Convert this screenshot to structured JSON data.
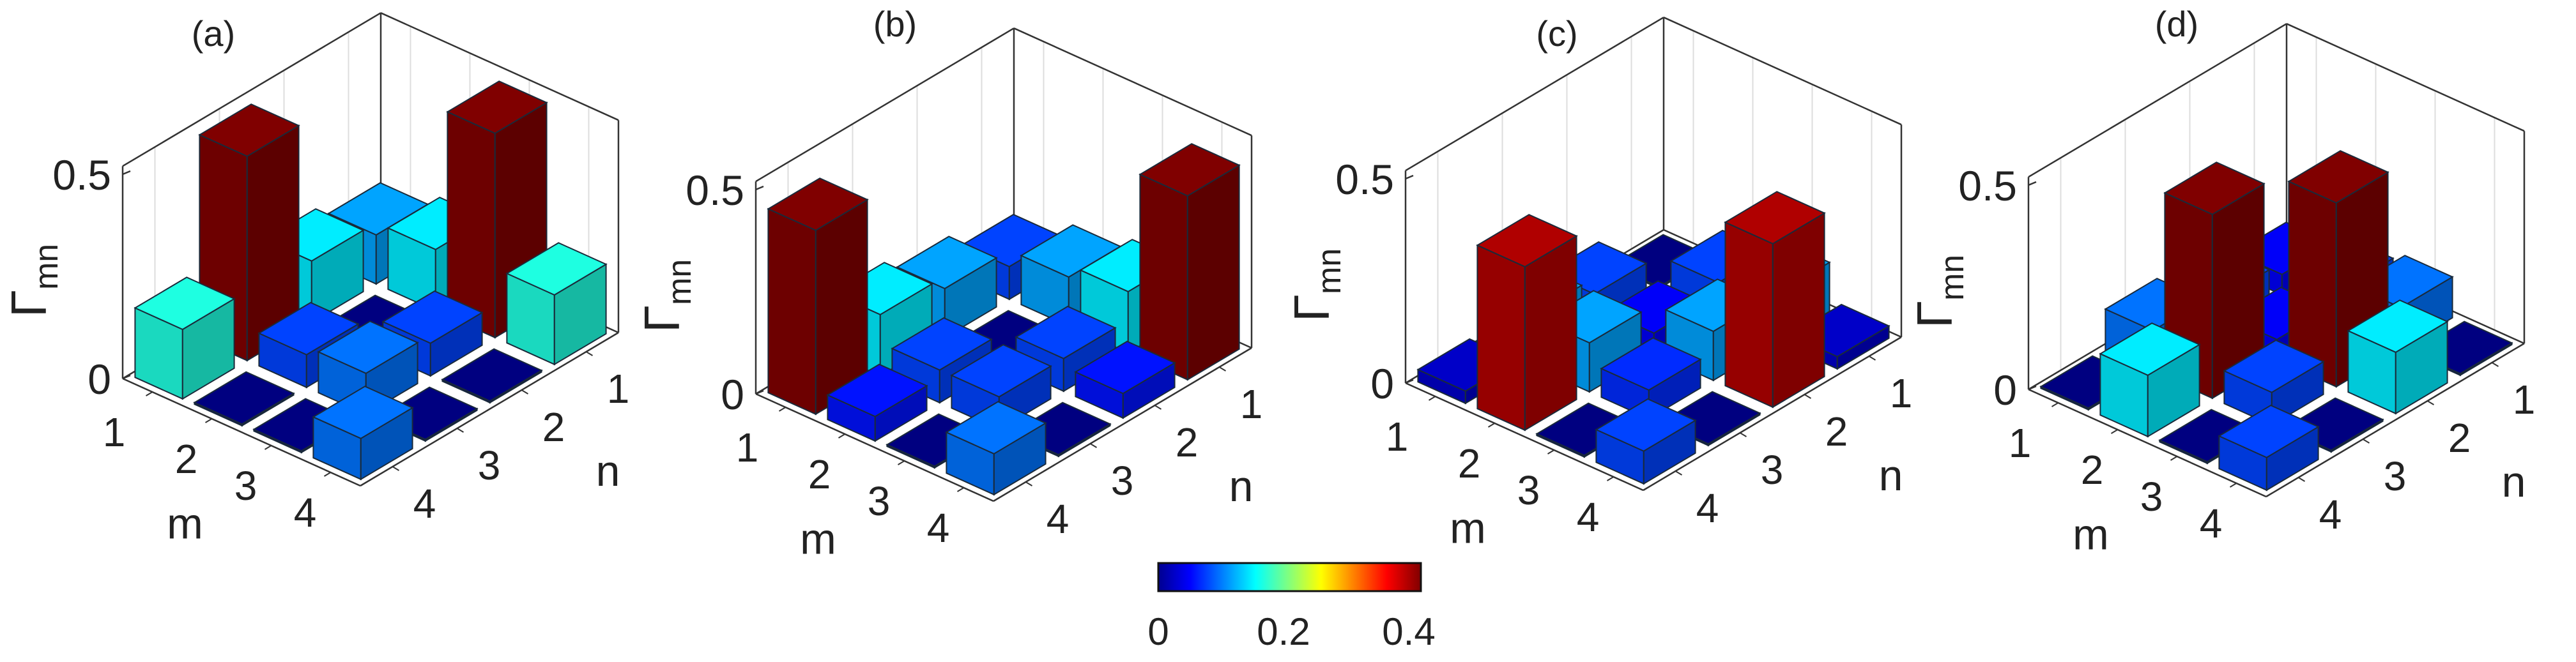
{
  "chart_data": [
    {
      "type": "bar3d",
      "panel_label": "(a)",
      "xlabel": "m",
      "ylabel": "n",
      "zlabel": "Γ",
      "zlabel_sub": "mn",
      "m_ticks": [
        "1",
        "2",
        "3",
        "4"
      ],
      "n_ticks": [
        "1",
        "2",
        "3",
        "4"
      ],
      "z_ticks": [
        "0",
        "0.5"
      ],
      "zlim": [
        0,
        0.52
      ],
      "values": [
        [
          0.12,
          0.15,
          0.5,
          0.17
        ],
        [
          0.15,
          0.0,
          0.08,
          0.0
        ],
        [
          0.5,
          0.08,
          0.1,
          0.0
        ],
        [
          0.17,
          0.0,
          0.0,
          0.1
        ]
      ]
    },
    {
      "type": "bar3d",
      "panel_label": "(b)",
      "xlabel": "m",
      "ylabel": "n",
      "zlabel": "Γ",
      "zlabel_sub": "mn",
      "m_ticks": [
        "1",
        "2",
        "3",
        "4"
      ],
      "n_ticks": [
        "1",
        "2",
        "3",
        "4"
      ],
      "z_ticks": [
        "0",
        "0.5"
      ],
      "zlim": [
        0,
        0.52
      ],
      "values": [
        [
          0.08,
          0.12,
          0.15,
          0.45
        ],
        [
          0.12,
          0.0,
          0.08,
          0.06
        ],
        [
          0.15,
          0.08,
          0.08,
          0.0
        ],
        [
          0.45,
          0.06,
          0.0,
          0.1
        ]
      ]
    },
    {
      "type": "bar3d",
      "panel_label": "(c)",
      "xlabel": "m",
      "ylabel": "n",
      "zlabel": "Γ",
      "zlabel_sub": "mn",
      "m_ticks": [
        "1",
        "2",
        "3",
        "4"
      ],
      "n_ticks": [
        "1",
        "2",
        "3",
        "4"
      ],
      "z_ticks": [
        "0",
        "0.5"
      ],
      "zlim": [
        0,
        0.52
      ],
      "values": [
        [
          0.0,
          0.08,
          0.12,
          0.03
        ],
        [
          0.08,
          0.05,
          0.12,
          0.4
        ],
        [
          0.12,
          0.12,
          0.07,
          0.0
        ],
        [
          0.03,
          0.4,
          0.0,
          0.08
        ]
      ]
    },
    {
      "type": "bar3d",
      "panel_label": "(d)",
      "xlabel": "m",
      "ylabel": "n",
      "zlabel": "Γ",
      "zlabel_sub": "mn",
      "m_ticks": [
        "1",
        "2",
        "3",
        "4"
      ],
      "n_ticks": [
        "1",
        "2",
        "3",
        "4"
      ],
      "z_ticks": [
        "0",
        "0.5"
      ],
      "zlim": [
        0,
        0.52
      ],
      "values": [
        [
          0.05,
          0.08,
          0.1,
          0.0
        ],
        [
          0.08,
          0.05,
          0.45,
          0.15
        ],
        [
          0.1,
          0.45,
          0.08,
          0.0
        ],
        [
          0.0,
          0.15,
          0.0,
          0.08
        ]
      ]
    }
  ],
  "colorbar": {
    "colormap": "jet",
    "range": [
      0,
      0.42
    ],
    "tick_labels": [
      "0",
      "0.2",
      "0.4"
    ],
    "tick_values": [
      0,
      0.2,
      0.4
    ]
  }
}
